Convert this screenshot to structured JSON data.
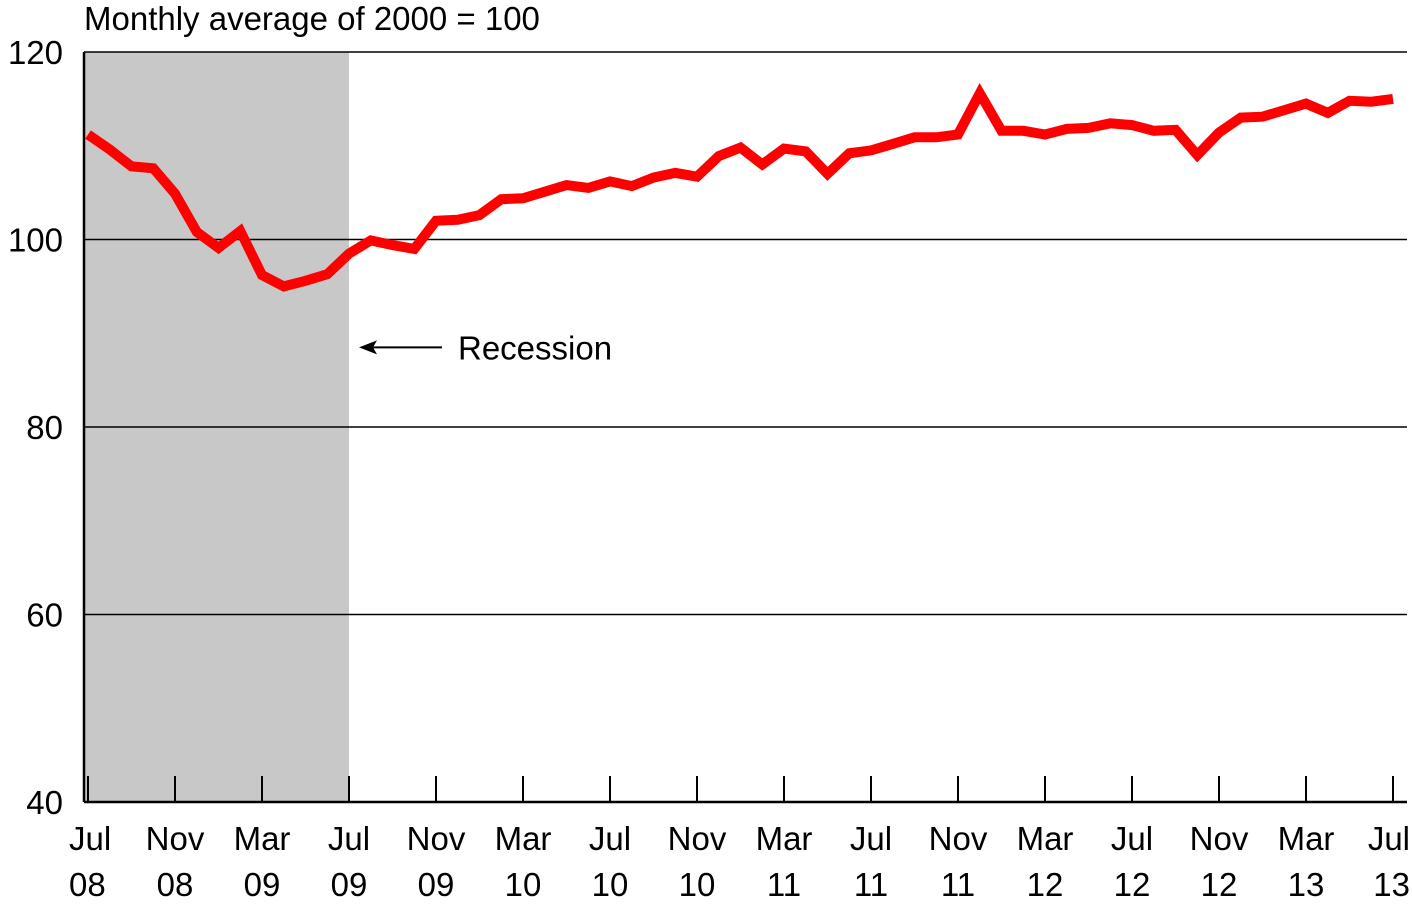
{
  "chart_data": {
    "type": "line",
    "title": "",
    "y_unit_label": "Monthly average of 2000 = 100",
    "xlabel": "",
    "ylabel": "",
    "ylim": [
      40,
      120
    ],
    "yticks": [
      40,
      60,
      80,
      100,
      120
    ],
    "grid": true,
    "x_tick_labels": [
      {
        "index": 0,
        "top": "Jul",
        "bottom": "08"
      },
      {
        "index": 4,
        "top": "Nov",
        "bottom": "08"
      },
      {
        "index": 8,
        "top": "Mar",
        "bottom": "09"
      },
      {
        "index": 12,
        "top": "Jul",
        "bottom": "09"
      },
      {
        "index": 16,
        "top": "Nov",
        "bottom": "09"
      },
      {
        "index": 20,
        "top": "Mar",
        "bottom": "10"
      },
      {
        "index": 24,
        "top": "Jul",
        "bottom": "10"
      },
      {
        "index": 28,
        "top": "Nov",
        "bottom": "10"
      },
      {
        "index": 32,
        "top": "Mar",
        "bottom": "11"
      },
      {
        "index": 36,
        "top": "Jul",
        "bottom": "11"
      },
      {
        "index": 40,
        "top": "Nov",
        "bottom": "11"
      },
      {
        "index": 44,
        "top": "Mar",
        "bottom": "12"
      },
      {
        "index": 48,
        "top": "Jul",
        "bottom": "12"
      },
      {
        "index": 52,
        "top": "Nov",
        "bottom": "12"
      },
      {
        "index": 56,
        "top": "Mar",
        "bottom": "13"
      },
      {
        "index": 60,
        "top": "Jul",
        "bottom": "13"
      }
    ],
    "x": [
      "2008-07",
      "2008-08",
      "2008-09",
      "2008-10",
      "2008-11",
      "2008-12",
      "2009-01",
      "2009-02",
      "2009-03",
      "2009-04",
      "2009-05",
      "2009-06",
      "2009-07",
      "2009-08",
      "2009-09",
      "2009-10",
      "2009-11",
      "2009-12",
      "2010-01",
      "2010-02",
      "2010-03",
      "2010-04",
      "2010-05",
      "2010-06",
      "2010-07",
      "2010-08",
      "2010-09",
      "2010-10",
      "2010-11",
      "2010-12",
      "2011-01",
      "2011-02",
      "2011-03",
      "2011-04",
      "2011-05",
      "2011-06",
      "2011-07",
      "2011-08",
      "2011-09",
      "2011-10",
      "2011-11",
      "2011-12",
      "2012-01",
      "2012-02",
      "2012-03",
      "2012-04",
      "2012-05",
      "2012-06",
      "2012-07",
      "2012-08",
      "2012-09",
      "2012-10",
      "2012-11",
      "2012-12",
      "2013-01",
      "2013-02",
      "2013-03",
      "2013-04",
      "2013-05",
      "2013-06",
      "2013-07"
    ],
    "series": [
      {
        "name": "",
        "color": "#ff0000",
        "values": [
          111.2,
          109.6,
          107.8,
          107.6,
          104.9,
          100.8,
          99.1,
          100.9,
          96.2,
          95.0,
          95.6,
          96.3,
          98.5,
          99.9,
          99.4,
          99.0,
          102.0,
          102.1,
          102.6,
          104.3,
          104.4,
          105.1,
          105.8,
          105.5,
          106.2,
          105.7,
          106.6,
          107.1,
          106.7,
          108.9,
          109.8,
          108.0,
          109.7,
          109.4,
          107.0,
          109.2,
          109.5,
          110.2,
          110.9,
          110.9,
          111.2,
          115.6,
          111.6,
          111.6,
          111.2,
          111.8,
          111.9,
          112.4,
          112.2,
          111.6,
          111.7,
          109.0,
          111.4,
          113.0,
          113.1,
          113.8,
          114.5,
          113.5,
          114.8,
          114.7,
          115.0
        ]
      }
    ],
    "shaded_regions": [
      {
        "start": "2008-07",
        "end": "2009-07",
        "color": "#c8c8c8"
      }
    ],
    "annotations": [
      {
        "text": "Recession",
        "arrow_to": "2009-07",
        "y": 88.5
      }
    ]
  }
}
